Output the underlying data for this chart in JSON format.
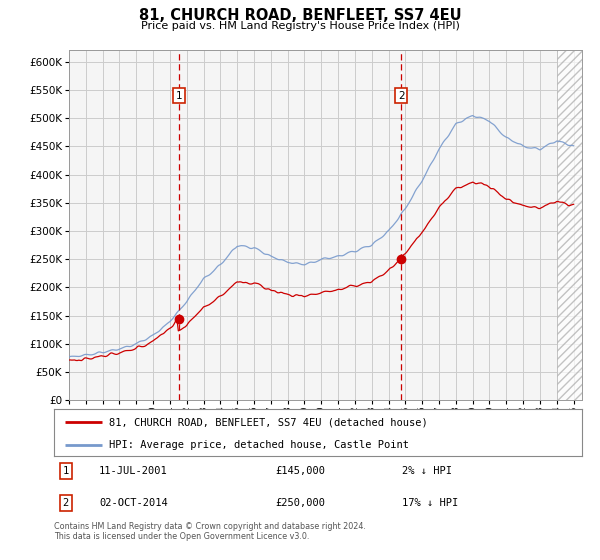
{
  "title": "81, CHURCH ROAD, BENFLEET, SS7 4EU",
  "subtitle": "Price paid vs. HM Land Registry's House Price Index (HPI)",
  "legend_line1": "81, CHURCH ROAD, BENFLEET, SS7 4EU (detached house)",
  "legend_line2": "HPI: Average price, detached house, Castle Point",
  "annotation1_date": "11-JUL-2001",
  "annotation1_value": 145000,
  "annotation1_note": "2% ↓ HPI",
  "annotation2_date": "02-OCT-2014",
  "annotation2_value": 250000,
  "annotation2_note": "17% ↓ HPI",
  "footer": "Contains HM Land Registry data © Crown copyright and database right 2024.\nThis data is licensed under the Open Government Licence v3.0.",
  "plot_bg": "#f0f0f0",
  "grid_color": "#cccccc",
  "red_line_color": "#cc0000",
  "blue_line_color": "#7799cc",
  "marker_color": "#cc0000",
  "vline_color": "#cc0000",
  "ylabel_ticks": [
    0,
    50000,
    100000,
    150000,
    200000,
    250000,
    300000,
    350000,
    400000,
    450000,
    500000,
    550000,
    600000
  ],
  "x_start_year": 1995,
  "x_end_year": 2025,
  "sale1_year": 2001.536,
  "sale2_year": 2014.748
}
